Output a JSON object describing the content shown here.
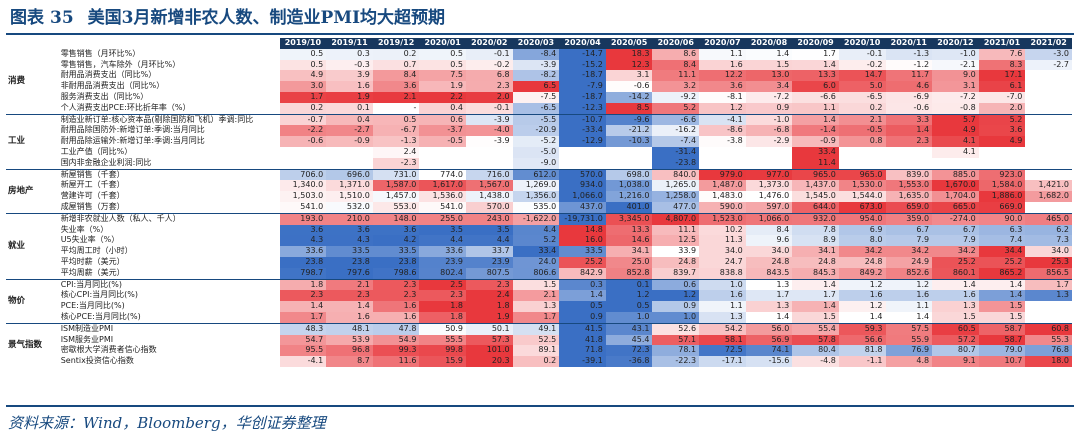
{
  "title": {
    "label": "图表",
    "number": "35",
    "text": "美国3月新增非农人数、制造业PMI均大超预期"
  },
  "source": "资料来源：Wind，Bloomberg，华创证券整理",
  "colors": {
    "positive": "#e8383d",
    "negative": "#3a6fc4",
    "header": "#17375e",
    "title": "#17497f"
  },
  "columns": [
    "2019/10",
    "2019/11",
    "2019/12",
    "2020/01",
    "2020/02",
    "2020/03",
    "2020/04",
    "2020/05",
    "2020/06",
    "2020/07",
    "2020/08",
    "2020/09",
    "2020/10",
    "2020/11",
    "2020/12",
    "2021/01",
    "2021/02"
  ],
  "groups": [
    {
      "category": "消费",
      "rows": [
        {
          "name": "零售销售（月环比%）",
          "values": [
            "0.5",
            "0.3",
            "0.2",
            "0.5",
            "-0.1",
            "-8.4",
            "-14.7",
            "18.3",
            "8.6",
            "1.1",
            "1.4",
            "1.7",
            "-0.1",
            "-1.3",
            "-1.0",
            "7.6",
            "-3.0"
          ]
        },
        {
          "name": "零售销售，汽车除外（月环比%）",
          "values": [
            "0.5",
            "-0.3",
            "0.7",
            "0.5",
            "-0.2",
            "-3.9",
            "-15.2",
            "12.3",
            "8.4",
            "1.6",
            "1.5",
            "1.4",
            "-0.2",
            "-1.2",
            "-2.1",
            "8.3",
            "-2.7"
          ]
        },
        {
          "name": "耐用品消费支出（同比%）",
          "values": [
            "4.9",
            "3.9",
            "8.4",
            "7.5",
            "6.8",
            "-8.2",
            "-18.7",
            "3.1",
            "11.1",
            "12.2",
            "13.0",
            "13.3",
            "14.7",
            "11.7",
            "9.0",
            "17.1",
            ""
          ]
        },
        {
          "name": "非耐用品消费支出（同比%）",
          "values": [
            "3.0",
            "1.6",
            "3.6",
            "1.9",
            "2.3",
            "6.5",
            "-7.9",
            "-0.6",
            "3.2",
            "3.6",
            "3.4",
            "6.0",
            "5.0",
            "4.6",
            "3.1",
            "6.1",
            ""
          ]
        },
        {
          "name": "服务消费支出（同比%）",
          "values": [
            "1.7",
            "1.9",
            "2.1",
            "2.2",
            "2.0",
            "-7.5",
            "-18.7",
            "-14.2",
            "-9.2",
            "-8.1",
            "-7.2",
            "-6.6",
            "-6.5",
            "-6.9",
            "-7.2",
            "-7.0",
            ""
          ]
        },
        {
          "name": "个人消费支出PCE:环比折年率（%）",
          "values": [
            "0.2",
            "0.1",
            "-",
            "0.4",
            "-0.1",
            "-6.5",
            "-12.3",
            "8.5",
            "5.2",
            "1.2",
            "0.9",
            "1.1",
            "0.2",
            "-0.6",
            "-0.8",
            "2.0",
            ""
          ]
        }
      ]
    },
    {
      "category": "工业",
      "rows": [
        {
          "name": "制造业新订单:核心资本品(剔除国防和飞机）季调:同比",
          "values": [
            "-0.7",
            "0.4",
            "0.5",
            "0.6",
            "-3.9",
            "-5.5",
            "-10.7",
            "-9.6",
            "-6.6",
            "-4.1",
            "-1.0",
            "1.4",
            "2.1",
            "3.3",
            "5.7",
            "5.2",
            ""
          ]
        },
        {
          "name": "耐用品除国防外:新增订单:季调:当月同比",
          "values": [
            "-2.2",
            "-2.7",
            "-6.7",
            "-3.7",
            "-4.0",
            "-20.9",
            "-33.4",
            "-21.2",
            "-16.2",
            "-8.6",
            "-6.8",
            "-1.4",
            "-0.5",
            "1.4",
            "4.9",
            "3.6",
            ""
          ]
        },
        {
          "name": "耐用品除运输外:新增订单:季调:当月同比",
          "values": [
            "-0.6",
            "-0.9",
            "-1.3",
            "-0.5",
            "-3.9",
            "-5.2",
            "-12.9",
            "-10.3",
            "-7.4",
            "-3.8",
            "-2.9",
            "-0.9",
            "0.8",
            "2.3",
            "4.1",
            "4.9",
            ""
          ]
        },
        {
          "name": "工业产值（同比%）",
          "values": [
            "",
            "",
            "2.4",
            "",
            "",
            "-5.0",
            "",
            "",
            "-31.4",
            "",
            "",
            "33.4",
            "",
            "",
            "4.1",
            "",
            ""
          ]
        },
        {
          "name": "国内非金融企业利润:同比",
          "values": [
            "",
            "",
            "-2.3",
            "",
            "",
            "-9.0",
            "",
            "",
            "-23.8",
            "",
            "",
            "11.4",
            "",
            "",
            "",
            "",
            ""
          ]
        }
      ]
    },
    {
      "category": "房地产",
      "rows": [
        {
          "name": "新屋销售（千套）",
          "values": [
            "706.0",
            "696.0",
            "731.0",
            "774.0",
            "716.0",
            "612.0",
            "570.0",
            "698.0",
            "840.0",
            "979.0",
            "977.0",
            "965.0",
            "965.0",
            "839.0",
            "885.0",
            "923.0",
            ""
          ]
        },
        {
          "name": "新屋开工（千套）",
          "values": [
            "1,340.0",
            "1,371.0",
            "1,587.0",
            "1,617.0",
            "1,567.0",
            "1,269.0",
            "934.0",
            "1,038.0",
            "1,265.0",
            "1,487.0",
            "1,373.0",
            "1,437.0",
            "1,530.0",
            "1,553.0",
            "1,670.0",
            "1,584.0",
            "1,421.0"
          ]
        },
        {
          "name": "营建许可（千套）",
          "values": [
            "1,503.0",
            "1,510.0",
            "1,457.0",
            "1,536.0",
            "1,438.0",
            "1,356.0",
            "1,066.0",
            "1,216.0",
            "1,258.0",
            "1,483.0",
            "1,476.0",
            "1,545.0",
            "1,544.0",
            "1,635.0",
            "1,704.0",
            "1,886.0",
            "1,682.0"
          ]
        },
        {
          "name": "成屋销售（万套）",
          "values": [
            "541.0",
            "532.0",
            "553.0",
            "541.0",
            "570.0",
            "535.0",
            "437.0",
            "401.0",
            "477.0",
            "590.0",
            "597.0",
            "644.0",
            "673.0",
            "659.0",
            "665.0",
            "669.0",
            ""
          ]
        }
      ]
    },
    {
      "category": "就业",
      "rows": [
        {
          "name": "新增非农就业人数（私人、千人）",
          "values": [
            "193.0",
            "210.0",
            "148.0",
            "255.0",
            "243.0",
            "-1,622.0",
            "-19,731.0",
            "3,345.0",
            "4,807.0",
            "1,523.0",
            "1,066.0",
            "932.0",
            "954.0",
            "359.0",
            "-274.0",
            "90.0",
            "465.0"
          ]
        },
        {
          "name": "失业率（%）",
          "values": [
            "3.6",
            "3.6",
            "3.6",
            "3.5",
            "3.5",
            "4.4",
            "14.8",
            "13.3",
            "11.1",
            "10.2",
            "8.4",
            "7.8",
            "6.9",
            "6.7",
            "6.7",
            "6.3",
            "6.2"
          ]
        },
        {
          "name": "U5失业率（%）",
          "values": [
            "4.3",
            "4.3",
            "4.2",
            "4.4",
            "4.4",
            "5.2",
            "16.0",
            "14.6",
            "12.5",
            "11.3",
            "9.6",
            "8.9",
            "8.0",
            "7.9",
            "7.9",
            "7.4",
            "7.3"
          ]
        },
        {
          "name": "平均周工时（小时）",
          "values": [
            "33.6",
            "33.5",
            "33.5",
            "33.6",
            "33.7",
            "33.4",
            "33.5",
            "34.1",
            "33.9",
            "34.0",
            "34.0",
            "34.1",
            "34.2",
            "34.2",
            "34.2",
            "34.4",
            "34.0"
          ]
        },
        {
          "name": "平均时薪（美元）",
          "values": [
            "23.8",
            "23.8",
            "23.8",
            "23.9",
            "23.9",
            "24.0",
            "25.2",
            "25.0",
            "24.8",
            "24.7",
            "24.8",
            "24.8",
            "24.8",
            "24.9",
            "25.2",
            "25.2",
            "25.3"
          ]
        },
        {
          "name": "平均周薪（美元）",
          "values": [
            "798.7",
            "797.6",
            "798.6",
            "802.4",
            "807.5",
            "806.6",
            "842.9",
            "852.8",
            "839.7",
            "838.8",
            "843.5",
            "845.3",
            "849.2",
            "852.6",
            "860.1",
            "865.2",
            "856.5"
          ]
        }
      ]
    },
    {
      "category": "物价",
      "rows": [
        {
          "name": "CPI:当月同比(%)",
          "values": [
            "1.8",
            "2.1",
            "2.3",
            "2.5",
            "2.3",
            "1.5",
            "0.3",
            "0.1",
            "0.6",
            "1.0",
            "1.3",
            "1.4",
            "1.2",
            "1.2",
            "1.4",
            "1.4",
            "1.7"
          ]
        },
        {
          "name": "核心CPI:当月同比(%)",
          "values": [
            "2.3",
            "2.3",
            "2.3",
            "2.3",
            "2.4",
            "2.1",
            "1.4",
            "1.2",
            "1.2",
            "1.6",
            "1.7",
            "1.7",
            "1.6",
            "1.6",
            "1.6",
            "1.4",
            "1.3"
          ]
        },
        {
          "name": "PCE:当月同比(%)",
          "values": [
            "1.4",
            "1.4",
            "1.6",
            "1.8",
            "1.8",
            "1.3",
            "0.5",
            "0.5",
            "0.9",
            "1.1",
            "1.3",
            "1.4",
            "1.2",
            "1.1",
            "1.3",
            "1.5",
            ""
          ]
        },
        {
          "name": "核心PCE:当月同比(%)",
          "values": [
            "1.7",
            "1.6",
            "1.6",
            "1.8",
            "1.9",
            "1.7",
            "0.9",
            "1.0",
            "1.0",
            "1.3",
            "1.4",
            "1.5",
            "1.4",
            "1.4",
            "1.5",
            "1.5",
            ""
          ]
        }
      ]
    },
    {
      "category": "景气指数",
      "rows": [
        {
          "name": "ISM制造业PMI",
          "values": [
            "48.3",
            "48.1",
            "47.8",
            "50.9",
            "50.1",
            "49.1",
            "41.5",
            "43.1",
            "52.6",
            "54.2",
            "56.0",
            "55.4",
            "59.3",
            "57.5",
            "60.5",
            "58.7",
            "60.8"
          ]
        },
        {
          "name": "ISM服务业PMI",
          "values": [
            "54.7",
            "53.9",
            "54.9",
            "55.5",
            "57.3",
            "52.5",
            "41.8",
            "45.4",
            "57.1",
            "58.1",
            "56.9",
            "57.8",
            "56.6",
            "55.9",
            "57.2",
            "58.7",
            "55.3"
          ]
        },
        {
          "name": "密歇根大学消费者信心指数",
          "values": [
            "95.5",
            "96.8",
            "99.3",
            "99.8",
            "101.0",
            "89.1",
            "71.8",
            "72.3",
            "78.1",
            "72.5",
            "74.1",
            "80.4",
            "81.8",
            "76.9",
            "80.7",
            "79.0",
            "76.8"
          ]
        },
        {
          "name": "Sentix投资信心指数",
          "values": [
            "-4.1",
            "8.7",
            "11.6",
            "15.9",
            "20.3",
            "0.2",
            "-39.1",
            "-36.8",
            "-22.3",
            "-17.1",
            "-15.6",
            "-4.8",
            "-1.1",
            "4.8",
            "9.1",
            "10.7",
            "18.0"
          ]
        }
      ]
    }
  ]
}
